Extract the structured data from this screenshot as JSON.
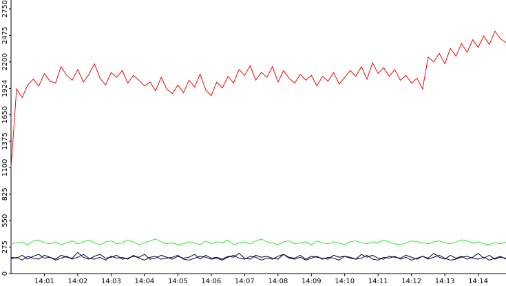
{
  "chart_data": {
    "type": "line",
    "xlim": [
      0,
      89
    ],
    "xticks": [
      {
        "value": 6,
        "label": "14:01"
      },
      {
        "value": 12,
        "label": "14:02"
      },
      {
        "value": 18,
        "label": "14:03"
      },
      {
        "value": 24,
        "label": "14:04"
      },
      {
        "value": 30,
        "label": "14:05"
      },
      {
        "value": 36,
        "label": "14:06"
      },
      {
        "value": 42,
        "label": "14:07"
      },
      {
        "value": 48,
        "label": "14:08"
      },
      {
        "value": 54,
        "label": "14:09"
      },
      {
        "value": 60,
        "label": "14:10"
      },
      {
        "value": 66,
        "label": "14:11"
      },
      {
        "value": 72,
        "label": "14:12"
      },
      {
        "value": 78,
        "label": "14:13"
      },
      {
        "value": 84,
        "label": "14:14"
      }
    ],
    "ylim": [
      0,
      2750
    ],
    "yticks": [
      0,
      275,
      550,
      825,
      1100,
      1375,
      1650,
      1924,
      2200,
      2475,
      2750
    ],
    "series": [
      {
        "color": "#ff0000",
        "values": [
          1100,
          1920,
          1830,
          1960,
          2020,
          1950,
          2080,
          2000,
          1980,
          2150,
          2060,
          2010,
          2120,
          1990,
          2070,
          2180,
          2030,
          1960,
          2090,
          2040,
          2110,
          1980,
          2060,
          2010,
          1950,
          1990,
          1900,
          2040,
          1920,
          1870,
          1960,
          1880,
          2010,
          1940,
          2070,
          1910,
          1850,
          1990,
          1930,
          2050,
          1980,
          2120,
          2060,
          2160,
          2010,
          2090,
          2040,
          2150,
          1990,
          2110,
          2030,
          1980,
          2070,
          2010,
          2060,
          1950,
          2050,
          2000,
          2090,
          1970,
          2040,
          2110,
          2050,
          2150,
          2020,
          2190,
          2080,
          2140,
          2050,
          2120,
          2010,
          2060,
          1980,
          2030,
          1920,
          2250,
          2200,
          2290,
          2180,
          2340,
          2260,
          2390,
          2300,
          2430,
          2350,
          2470,
          2380,
          2520,
          2440,
          2400
        ]
      },
      {
        "color": "#22ee22",
        "values": [
          310,
          320,
          330,
          300,
          340,
          350,
          320,
          310,
          330,
          300,
          320,
          340,
          310,
          330,
          350,
          320,
          300,
          330,
          340,
          310,
          320,
          350,
          330,
          300,
          320,
          340,
          360,
          330,
          310,
          320,
          300,
          310,
          330,
          320,
          300,
          340,
          310,
          330,
          320,
          350,
          300,
          320,
          330,
          310,
          340,
          360,
          330,
          320,
          300,
          330,
          340,
          310,
          320,
          330,
          300,
          340,
          320,
          310,
          330,
          320,
          300,
          330,
          340,
          320,
          310,
          330,
          320,
          350,
          330,
          310,
          300,
          320,
          340,
          330,
          320,
          310,
          330,
          340,
          320,
          310,
          330,
          350,
          340,
          320,
          330,
          310,
          300,
          320,
          310,
          330
        ]
      },
      {
        "color": "#000080",
        "values": [
          150,
          170,
          140,
          180,
          160,
          150,
          190,
          170,
          140,
          160,
          180,
          150,
          170,
          200,
          160,
          150,
          170,
          140,
          180,
          160,
          170,
          150,
          190,
          160,
          140,
          170,
          180,
          150,
          160,
          170,
          190,
          150,
          140,
          160,
          180,
          170,
          150,
          160,
          140,
          170,
          190,
          160,
          150,
          180,
          170,
          140,
          160,
          150,
          180,
          200,
          160,
          150,
          170,
          140,
          160,
          180,
          150,
          170,
          160,
          140,
          180,
          170,
          150,
          160,
          190,
          150,
          140,
          170,
          160,
          180,
          150,
          170,
          140,
          160,
          180,
          150,
          170,
          190,
          160,
          140,
          150,
          170,
          180,
          160,
          150,
          170,
          140,
          160,
          180,
          150
        ]
      },
      {
        "color": "#000000",
        "values": [
          170,
          160,
          190,
          150,
          180,
          200,
          160,
          170,
          150,
          190,
          170,
          160,
          220,
          170,
          150,
          180,
          200,
          160,
          170,
          190,
          150,
          160,
          180,
          170,
          200,
          150,
          160,
          190,
          170,
          150,
          180,
          160,
          170,
          200,
          150,
          190,
          160,
          170,
          150,
          180,
          170,
          210,
          160,
          150,
          190,
          170,
          180,
          160,
          150,
          200,
          170,
          160,
          190,
          150,
          180,
          170,
          160,
          150,
          190,
          170,
          180,
          160,
          150,
          200,
          170,
          190,
          160,
          150,
          180,
          170,
          160,
          190,
          170,
          150,
          180,
          160,
          210,
          170,
          150,
          190,
          160,
          180,
          150,
          170,
          210,
          160,
          190,
          150,
          170,
          160
        ]
      }
    ]
  }
}
